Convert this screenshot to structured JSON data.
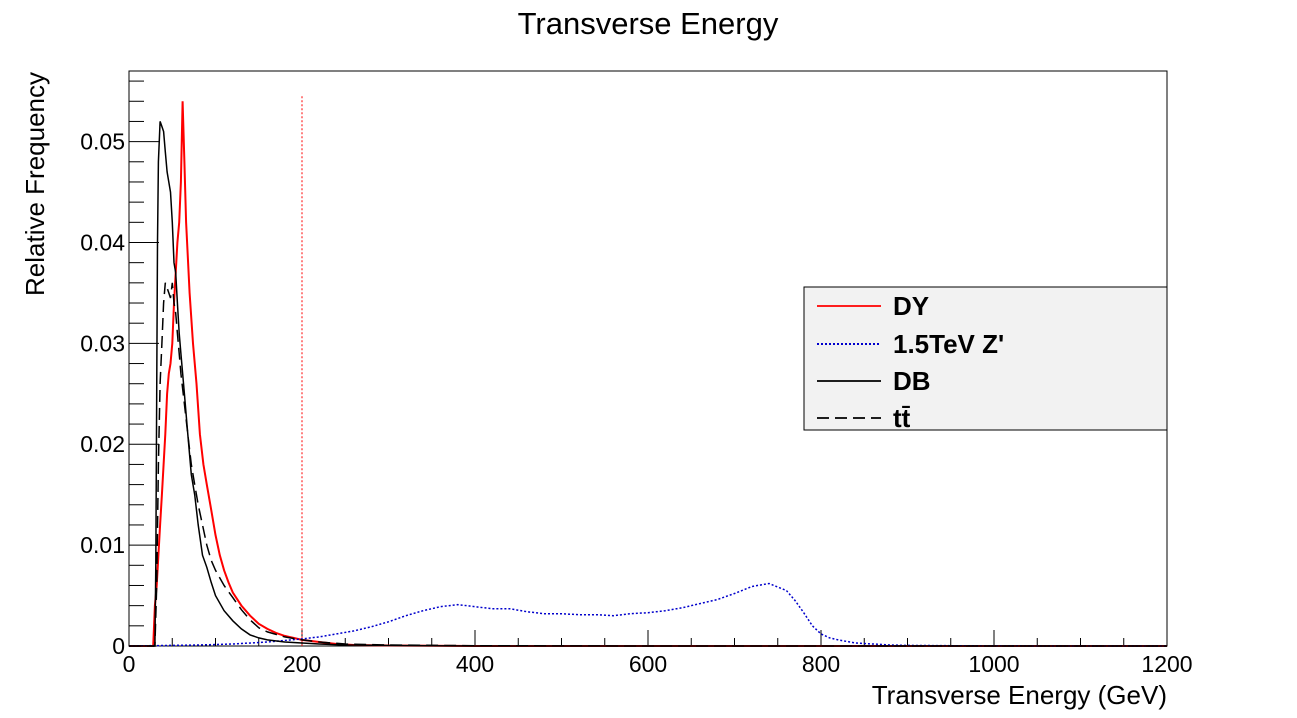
{
  "chart_data": {
    "type": "line",
    "title": "Transverse Energy",
    "xlabel": "Transverse Energy (GeV)",
    "ylabel": "Relative Frequency",
    "xlim": [
      0,
      1200
    ],
    "ylim": [
      0,
      0.057
    ],
    "x_ticks": [
      0,
      200,
      400,
      600,
      800,
      1000,
      1200
    ],
    "x_tick_labels": [
      "0",
      "200",
      "400",
      "600",
      "800",
      "1000",
      "1200"
    ],
    "y_ticks": [
      0,
      0.01,
      0.02,
      0.03,
      0.04,
      0.05
    ],
    "y_tick_labels": [
      "0",
      "0.01",
      "0.02",
      "0.03",
      "0.04",
      "0.05"
    ],
    "grid": false,
    "legend_position": "right",
    "cut_line_x": 200,
    "series": [
      {
        "name": "DY",
        "style": "solid",
        "color": "#ff0000",
        "x": [
          0,
          28,
          30,
          32,
          34,
          36,
          38,
          40,
          42,
          44,
          46,
          48,
          50,
          52,
          54,
          56,
          58,
          60,
          62,
          64,
          66,
          70,
          74,
          78,
          82,
          86,
          90,
          95,
          100,
          105,
          110,
          115,
          120,
          130,
          140,
          150,
          160,
          170,
          180,
          190,
          200,
          220,
          240,
          260,
          300,
          400,
          600,
          800,
          1000,
          1200
        ],
        "y": [
          0,
          0,
          0.004,
          0.006,
          0.009,
          0.012,
          0.015,
          0.018,
          0.021,
          0.025,
          0.027,
          0.028,
          0.03,
          0.034,
          0.037,
          0.04,
          0.042,
          0.046,
          0.054,
          0.048,
          0.042,
          0.035,
          0.03,
          0.026,
          0.021,
          0.018,
          0.016,
          0.0135,
          0.011,
          0.009,
          0.0075,
          0.0063,
          0.0053,
          0.004,
          0.003,
          0.0022,
          0.0017,
          0.0013,
          0.001,
          0.0008,
          0.0006,
          0.0004,
          0.0002,
          0.0001,
          5e-05,
          0,
          0,
          0,
          0,
          0
        ]
      },
      {
        "name": "1.5TeV Z'",
        "style": "dotted",
        "color": "#0000cc",
        "x": [
          0,
          40,
          80,
          120,
          160,
          200,
          220,
          240,
          260,
          280,
          300,
          320,
          340,
          360,
          380,
          400,
          420,
          440,
          460,
          480,
          500,
          520,
          540,
          560,
          580,
          600,
          620,
          640,
          660,
          680,
          700,
          720,
          740,
          760,
          770,
          780,
          790,
          800,
          810,
          820,
          840,
          860,
          880,
          900,
          950,
          1000,
          1100,
          1200
        ],
        "y": [
          0,
          5e-05,
          0.0001,
          0.0002,
          0.0004,
          0.0007,
          0.0009,
          0.0012,
          0.0015,
          0.0019,
          0.0024,
          0.003,
          0.0035,
          0.0039,
          0.0041,
          0.0039,
          0.0037,
          0.0037,
          0.0034,
          0.0032,
          0.0032,
          0.0031,
          0.0031,
          0.003,
          0.0032,
          0.0033,
          0.0035,
          0.0038,
          0.0042,
          0.0046,
          0.0052,
          0.0059,
          0.0062,
          0.0055,
          0.0045,
          0.0033,
          0.002,
          0.0012,
          0.0008,
          0.0006,
          0.0003,
          0.0002,
          0.0001,
          6e-05,
          3e-05,
          1e-05,
          0,
          0
        ]
      },
      {
        "name": "DB",
        "style": "solid",
        "color": "#000000",
        "x": [
          0,
          30,
          31,
          32,
          33,
          34,
          36,
          38,
          40,
          42,
          44,
          46,
          48,
          50,
          52,
          54,
          56,
          58,
          60,
          64,
          68,
          72,
          76,
          80,
          85,
          90,
          95,
          100,
          110,
          120,
          130,
          140,
          150,
          160,
          180,
          200,
          220,
          250,
          300,
          400,
          600,
          800,
          1000,
          1200
        ],
        "y": [
          0,
          0,
          0.008,
          0.025,
          0.04,
          0.048,
          0.052,
          0.0515,
          0.051,
          0.049,
          0.047,
          0.046,
          0.045,
          0.042,
          0.038,
          0.037,
          0.034,
          0.031,
          0.029,
          0.025,
          0.021,
          0.017,
          0.015,
          0.012,
          0.009,
          0.0078,
          0.0063,
          0.005,
          0.0035,
          0.0025,
          0.0017,
          0.0011,
          0.0008,
          0.0006,
          0.0004,
          0.0003,
          0.0002,
          0.0001,
          5e-05,
          0,
          0,
          0,
          0,
          0
        ]
      },
      {
        "name": "tt̄",
        "style": "dashed",
        "color": "#000000",
        "x": [
          0,
          30,
          32,
          34,
          36,
          38,
          40,
          42,
          44,
          46,
          48,
          50,
          52,
          54,
          56,
          58,
          60,
          64,
          68,
          72,
          76,
          80,
          85,
          90,
          95,
          100,
          110,
          120,
          130,
          140,
          150,
          160,
          180,
          200,
          220,
          250,
          300,
          400,
          600,
          800,
          1000,
          1200
        ],
        "y": [
          0,
          0,
          0.006,
          0.018,
          0.026,
          0.03,
          0.034,
          0.036,
          0.0355,
          0.035,
          0.0345,
          0.036,
          0.034,
          0.033,
          0.031,
          0.029,
          0.027,
          0.024,
          0.021,
          0.018,
          0.016,
          0.014,
          0.012,
          0.01,
          0.0085,
          0.0075,
          0.006,
          0.0048,
          0.0036,
          0.0026,
          0.0018,
          0.0014,
          0.0009,
          0.0006,
          0.0004,
          0.0002,
          0.0001,
          3e-05,
          0,
          0,
          0,
          0
        ]
      }
    ]
  }
}
